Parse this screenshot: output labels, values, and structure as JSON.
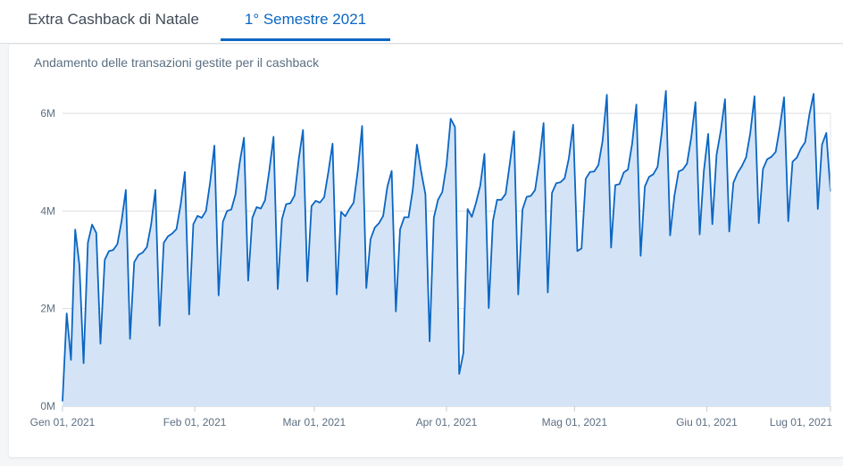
{
  "tabs": [
    {
      "label": "Extra Cashback di Natale",
      "active": false
    },
    {
      "label": "1° Semestre 2021",
      "active": true
    }
  ],
  "colors": {
    "accent": "#0b66c3",
    "area_fill": "#d4e4f6",
    "grid": "#d9dde2"
  },
  "chart_data": {
    "type": "area",
    "title": "Andamento delle transazioni gestite per il cashback",
    "xlabel": "",
    "ylabel": "",
    "x_start": "2021-01-01",
    "x_end": "2021-06-30",
    "x_ticks": [
      "Gen 01, 2021",
      "Feb 01, 2021",
      "Mar 01, 2021",
      "Apr 01, 2021",
      "Mag 01, 2021",
      "Giu 01, 2021",
      "Lug 01, 2021"
    ],
    "y_ticks": [
      "0M",
      "2M",
      "4M",
      "6M"
    ],
    "ylim": [
      0,
      6000000
    ],
    "grid": true,
    "legend": "none",
    "values": [
      100000,
      1900000,
      950000,
      3620000,
      2900000,
      880000,
      3350000,
      3720000,
      3550000,
      1280000,
      3000000,
      3180000,
      3200000,
      3320000,
      3800000,
      4430000,
      1380000,
      2950000,
      3100000,
      3150000,
      3260000,
      3720000,
      4430000,
      1650000,
      3350000,
      3480000,
      3540000,
      3630000,
      4130000,
      4800000,
      1880000,
      3730000,
      3900000,
      3860000,
      4000000,
      4600000,
      5340000,
      2270000,
      3780000,
      4000000,
      4030000,
      4340000,
      5000000,
      5500000,
      2570000,
      3860000,
      4080000,
      4050000,
      4220000,
      4820000,
      5520000,
      2400000,
      3830000,
      4140000,
      4160000,
      4320000,
      5070000,
      5660000,
      2560000,
      4100000,
      4210000,
      4170000,
      4280000,
      4800000,
      5380000,
      2290000,
      3980000,
      3890000,
      4040000,
      4170000,
      4850000,
      5740000,
      2420000,
      3420000,
      3660000,
      3750000,
      3900000,
      4500000,
      4820000,
      1940000,
      3620000,
      3870000,
      3870000,
      4430000,
      5360000,
      4810000,
      4340000,
      1330000,
      3860000,
      4230000,
      4390000,
      4940000,
      5890000,
      5720000,
      660000,
      1090000,
      4040000,
      3880000,
      4170000,
      4520000,
      5170000,
      2010000,
      3800000,
      4230000,
      4230000,
      4350000,
      4970000,
      5630000,
      2290000,
      4030000,
      4290000,
      4310000,
      4430000,
      5030000,
      5800000,
      2330000,
      4370000,
      4570000,
      4590000,
      4670000,
      5080000,
      5770000,
      3180000,
      3230000,
      4660000,
      4800000,
      4810000,
      4940000,
      5440000,
      6380000,
      3250000,
      4530000,
      4550000,
      4790000,
      4850000,
      5380000,
      6180000,
      3080000,
      4500000,
      4700000,
      4750000,
      4900000,
      5600000,
      6460000,
      3500000,
      4310000,
      4810000,
      4850000,
      4970000,
      5510000,
      6230000,
      3520000,
      4820000,
      5580000,
      3730000,
      5150000,
      5640000,
      6290000,
      3580000,
      4580000,
      4780000,
      4920000,
      5100000,
      5600000,
      6350000,
      3750000,
      4860000,
      5060000,
      5110000,
      5210000,
      5720000,
      6330000,
      3790000,
      5010000,
      5090000,
      5280000,
      5410000,
      5980000,
      6400000,
      4040000,
      5360000,
      5600000,
      4400000
    ]
  }
}
